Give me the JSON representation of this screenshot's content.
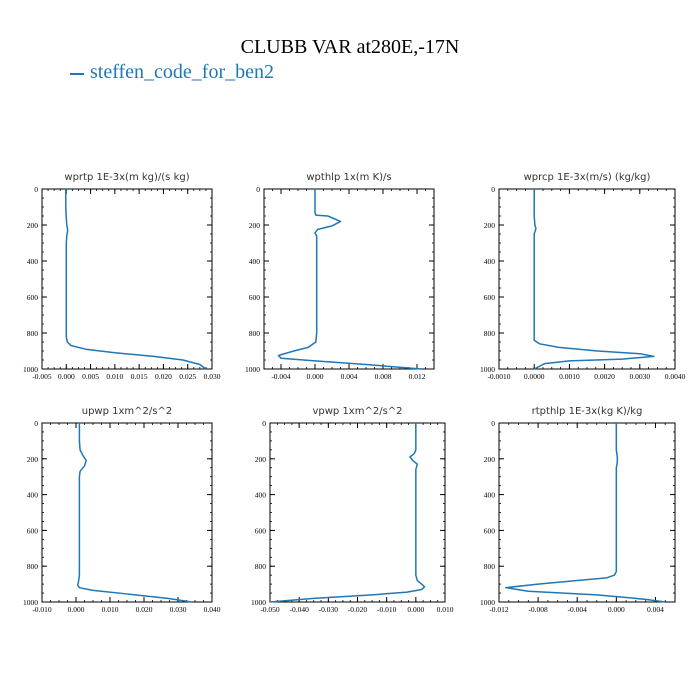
{
  "title": "CLUBB VAR at280E,-17N",
  "legend": {
    "label": "steffen_code_for_ben2",
    "color": "#1f77b4"
  },
  "chart_data": [
    {
      "type": "line",
      "title": "wprtp  1E-3x(m kg)/(s kg)",
      "xlim": [
        -0.005,
        0.03
      ],
      "xticks": [
        -0.005,
        0.0,
        0.005,
        0.01,
        0.015,
        0.02,
        0.025,
        0.03
      ],
      "xtick_labels": [
        "-0.005",
        "0.000",
        "0.005",
        "0.010",
        "0.015",
        "0.020",
        "0.025",
        "0.030"
      ],
      "ylim": [
        0,
        1000
      ],
      "yticks": [
        0,
        200,
        400,
        600,
        800,
        1000
      ],
      "ytick_labels": [
        "0",
        "200",
        "400",
        "600",
        "800",
        "1000"
      ],
      "series": [
        {
          "color": "#1f77b4",
          "x": [
            -0.0001,
            -0.0001,
            0.0,
            0.0001,
            0.0003,
            0.0001,
            0.0,
            0.0,
            0.0,
            0.0,
            0.0,
            0.0,
            0.0002,
            0.001,
            0.004,
            0.01,
            0.018,
            0.024,
            0.0275,
            0.0287
          ],
          "y": [
            0,
            100,
            160,
            200,
            230,
            260,
            300,
            400,
            500,
            600,
            700,
            820,
            850,
            870,
            890,
            910,
            930,
            950,
            975,
            1000
          ]
        }
      ]
    },
    {
      "type": "line",
      "title": "wpthlp  1x(m K)/s",
      "xlim": [
        -0.006,
        0.014
      ],
      "xticks": [
        -0.004,
        0.0,
        0.004,
        0.008,
        0.012
      ],
      "xtick_labels": [
        "-0.004",
        "0.000",
        "0.004",
        "0.008",
        "0.012"
      ],
      "ylim": [
        0,
        1000
      ],
      "yticks": [
        0,
        200,
        400,
        600,
        800,
        1000
      ],
      "ytick_labels": [
        "0",
        "200",
        "400",
        "600",
        "800",
        "1000"
      ],
      "series": [
        {
          "color": "#1f77b4",
          "x": [
            0.0,
            0.0,
            0.0001,
            0.0015,
            0.003,
            0.002,
            0.0003,
            0.0,
            0.0002,
            0.0002,
            0.0002,
            0.0002,
            0.0002,
            0.0001,
            -0.0008,
            -0.0025,
            -0.0043,
            -0.004,
            0.0,
            0.006,
            0.0125
          ],
          "y": [
            0,
            130,
            145,
            150,
            180,
            205,
            225,
            245,
            260,
            300,
            400,
            600,
            800,
            850,
            880,
            900,
            925,
            940,
            955,
            975,
            1000
          ]
        }
      ]
    },
    {
      "type": "line",
      "title": "wprcp  1E-3x(m/s) (kg/kg)",
      "xlim": [
        -0.001,
        0.004
      ],
      "xticks": [
        -0.001,
        0.0,
        0.001,
        0.002,
        0.003,
        0.004
      ],
      "xtick_labels": [
        "-0.0010",
        "0.0000",
        "0.0010",
        "0.0020",
        "0.0030",
        "0.0040"
      ],
      "ylim": [
        0,
        1000
      ],
      "yticks": [
        0,
        200,
        400,
        600,
        800,
        1000
      ],
      "ytick_labels": [
        "0",
        "200",
        "400",
        "600",
        "800",
        "1000"
      ],
      "series": [
        {
          "color": "#1f77b4",
          "x": [
            0.0,
            0.0,
            2e-05,
            5e-05,
            0.0,
            0.0,
            0.0,
            0.0,
            0.0,
            0.0,
            0.00015,
            0.0007,
            0.0018,
            0.003,
            0.0034,
            0.0025,
            0.001,
            0.0003,
            0.0
          ],
          "y": [
            0,
            150,
            200,
            220,
            250,
            400,
            600,
            700,
            820,
            840,
            860,
            880,
            900,
            915,
            930,
            945,
            955,
            970,
            1000
          ]
        }
      ]
    },
    {
      "type": "line",
      "title": "upwp  1xm^2/s^2",
      "xlim": [
        -0.01,
        0.04
      ],
      "xticks": [
        -0.01,
        0.0,
        0.01,
        0.02,
        0.03,
        0.04
      ],
      "xtick_labels": [
        "-0.010",
        "0.000",
        "0.010",
        "0.020",
        "0.030",
        "0.040"
      ],
      "ylim": [
        0,
        1000
      ],
      "yticks": [
        0,
        200,
        400,
        600,
        800,
        1000
      ],
      "ytick_labels": [
        "0",
        "200",
        "400",
        "600",
        "800",
        "1000"
      ],
      "series": [
        {
          "color": "#1f77b4",
          "x": [
            0.001,
            0.001,
            0.0012,
            0.002,
            0.003,
            0.0025,
            0.0012,
            0.001,
            0.001,
            0.001,
            0.001,
            0.0008,
            0.0005,
            0.001,
            0.005,
            0.015,
            0.027,
            0.034
          ],
          "y": [
            0,
            100,
            150,
            180,
            210,
            240,
            270,
            300,
            500,
            700,
            850,
            880,
            905,
            920,
            935,
            955,
            980,
            1000
          ]
        }
      ]
    },
    {
      "type": "line",
      "title": "vpwp  1xm^2/s^2",
      "xlim": [
        -0.05,
        0.01
      ],
      "xticks": [
        -0.05,
        -0.04,
        -0.03,
        -0.02,
        -0.01,
        0.0,
        0.01
      ],
      "xtick_labels": [
        "-0.050",
        "-0.040",
        "-0.030",
        "-0.020",
        "-0.010",
        "0.000",
        "0.010"
      ],
      "ylim": [
        0,
        1000
      ],
      "yticks": [
        0,
        200,
        400,
        600,
        800,
        1000
      ],
      "ytick_labels": [
        "0",
        "200",
        "400",
        "600",
        "800",
        "1000"
      ],
      "series": [
        {
          "color": "#1f77b4",
          "x": [
            0.0,
            0.0,
            -0.0005,
            -0.002,
            -0.001,
            0.0005,
            0.0,
            0.0,
            0.0,
            0.0,
            0.0,
            0.0005,
            0.002,
            0.003,
            0.002,
            -0.003,
            -0.015,
            -0.035,
            -0.052
          ],
          "y": [
            0,
            150,
            170,
            190,
            210,
            230,
            260,
            300,
            500,
            700,
            850,
            880,
            900,
            915,
            930,
            945,
            960,
            980,
            1000
          ]
        }
      ]
    },
    {
      "type": "line",
      "title": "rtpthlp  1E-3x(kg K)/kg",
      "xlim": [
        -0.012,
        0.006
      ],
      "xticks": [
        -0.012,
        -0.008,
        -0.004,
        0.0,
        0.004
      ],
      "xtick_labels": [
        "-0.012",
        "-0.008",
        "-0.004",
        "0.000",
        "0.004"
      ],
      "ylim": [
        0,
        1000
      ],
      "yticks": [
        0,
        200,
        400,
        600,
        800,
        1000
      ],
      "ytick_labels": [
        "0",
        "200",
        "400",
        "600",
        "800",
        "1000"
      ],
      "series": [
        {
          "color": "#1f77b4",
          "x": [
            0.0,
            0.0,
            0.0001,
            0.0001,
            0.0,
            0.0,
            0.0,
            0.0,
            0.0,
            -0.0002,
            -0.001,
            -0.004,
            -0.008,
            -0.0113,
            -0.009,
            -0.002,
            0.003,
            0.005
          ],
          "y": [
            0,
            150,
            190,
            220,
            250,
            400,
            600,
            800,
            830,
            850,
            865,
            880,
            900,
            920,
            940,
            960,
            985,
            1000
          ]
        }
      ]
    }
  ]
}
